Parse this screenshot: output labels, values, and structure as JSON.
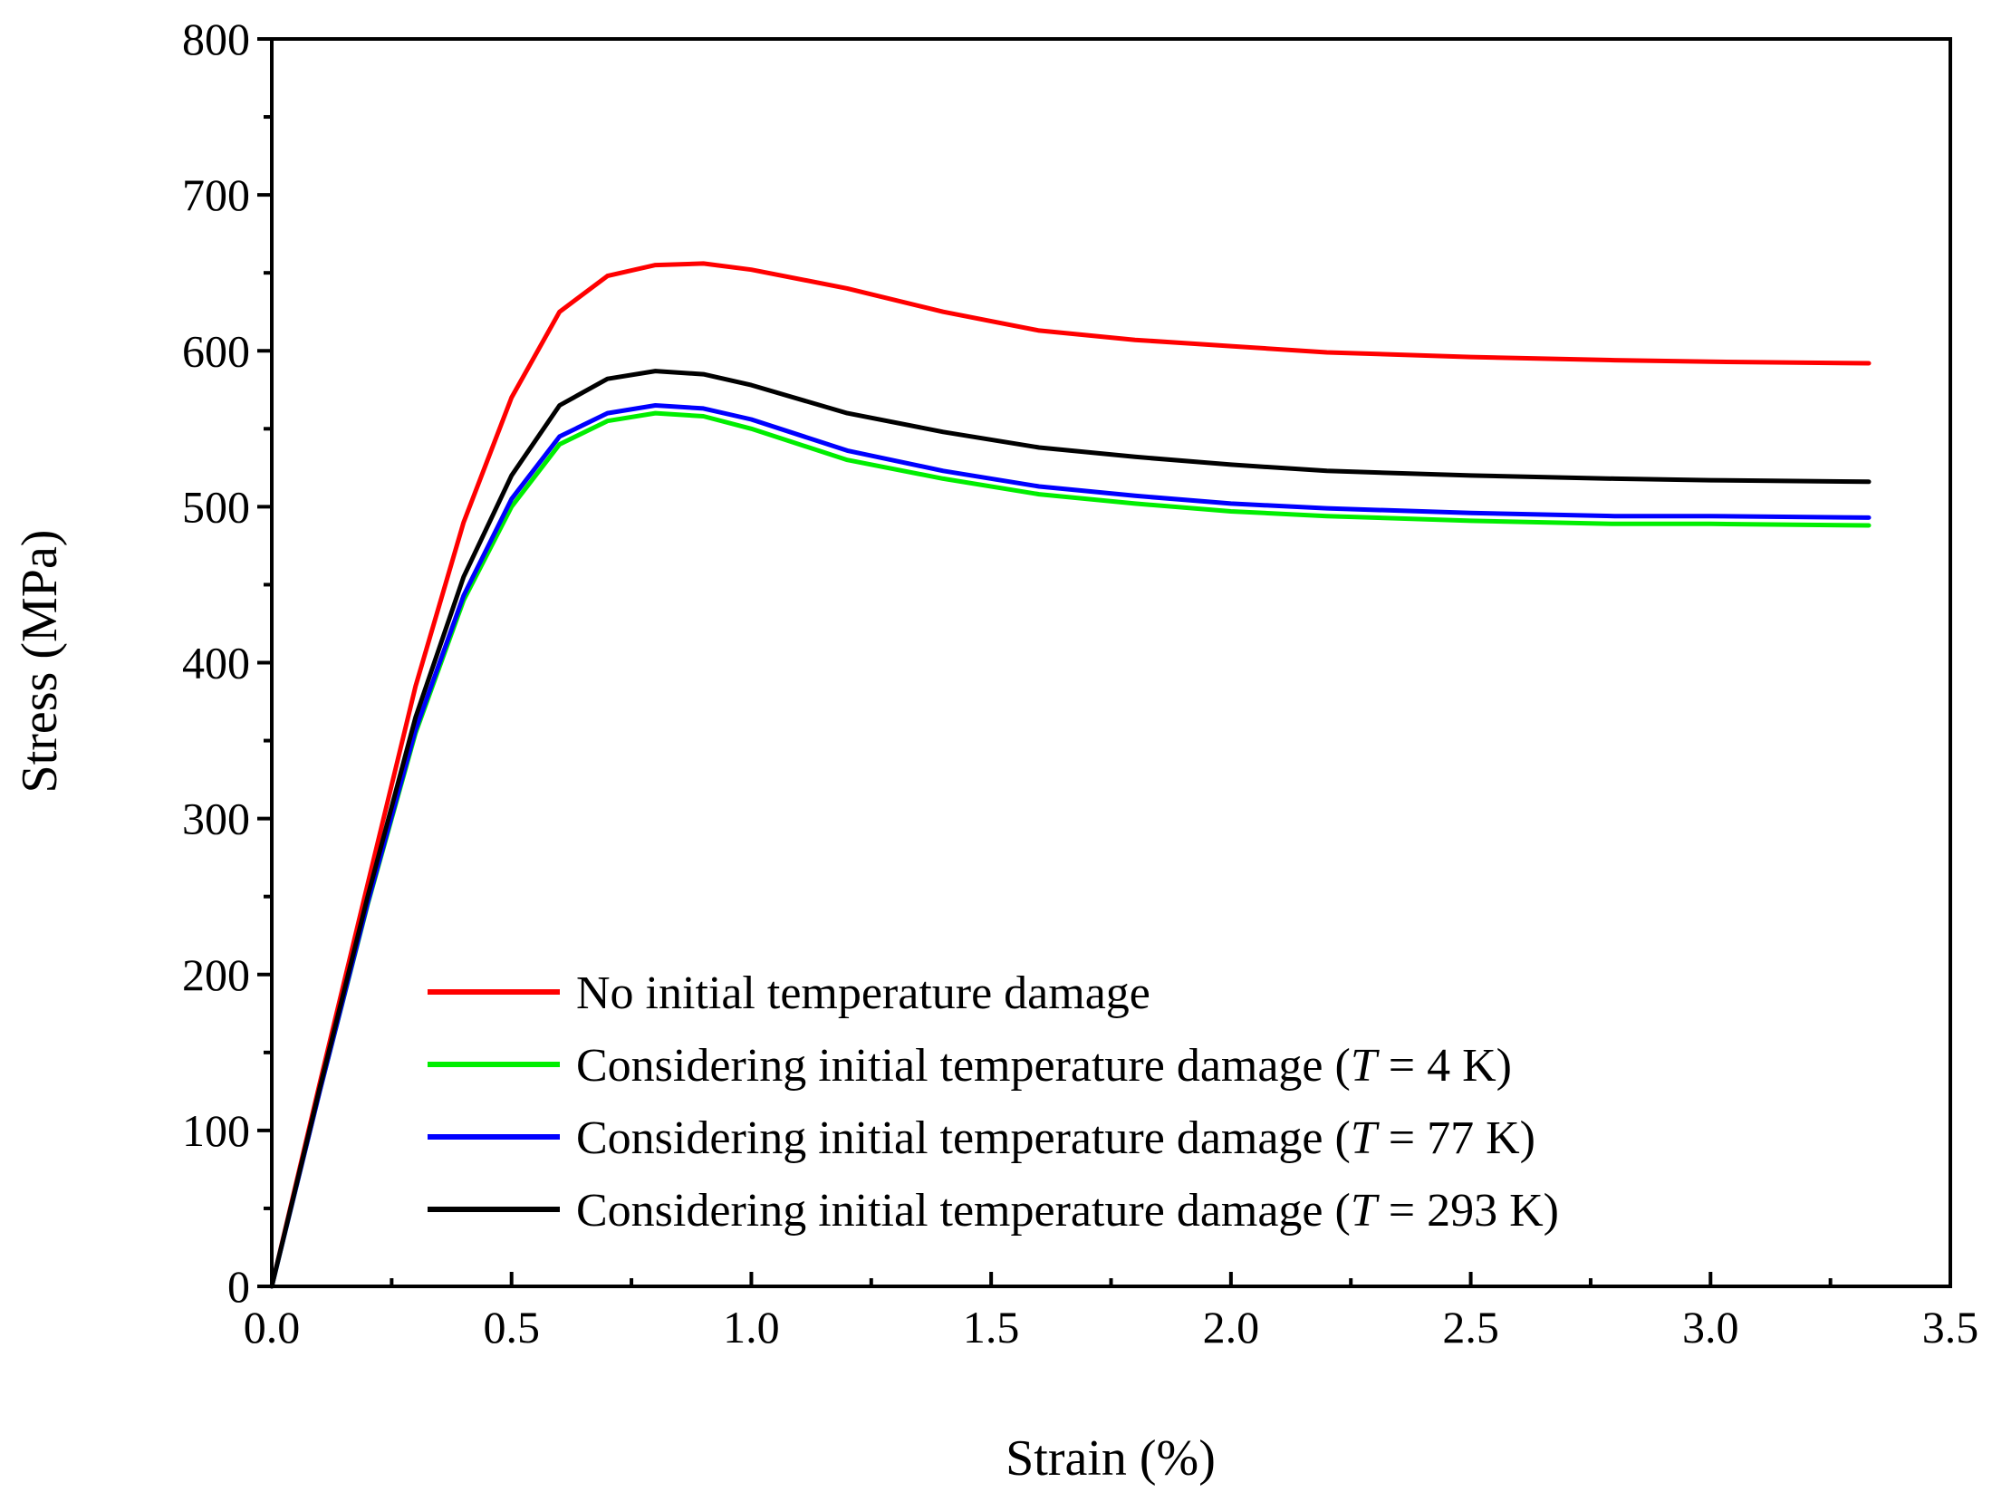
{
  "chart_data": {
    "type": "line",
    "title": "",
    "xlabel": "Strain (%)",
    "ylabel": "Stress (MPa)",
    "xlim": [
      0,
      3.5
    ],
    "ylim": [
      0,
      800
    ],
    "x_ticks": [
      "0.0",
      "0.5",
      "1.0",
      "1.5",
      "2.0",
      "2.5",
      "3.0",
      "3.5"
    ],
    "y_ticks": [
      "0",
      "100",
      "200",
      "300",
      "400",
      "500",
      "600",
      "700",
      "800"
    ],
    "grid": false,
    "legend_position": "lower-center",
    "series": [
      {
        "name": "No initial temperature damage",
        "label_parts": [
          "No initial temperature damage"
        ],
        "color": "#ff0000",
        "x": [
          0,
          0.1,
          0.2,
          0.3,
          0.4,
          0.5,
          0.6,
          0.7,
          0.8,
          0.9,
          1.0,
          1.2,
          1.4,
          1.6,
          1.8,
          2.0,
          2.2,
          2.5,
          2.8,
          3.0,
          3.33
        ],
        "y": [
          0,
          130,
          258,
          385,
          490,
          570,
          625,
          648,
          655,
          656,
          652,
          640,
          625,
          613,
          607,
          603,
          599,
          596,
          594,
          593,
          592
        ]
      },
      {
        "name": "Considering initial temperature damage (T = 4 K)",
        "label_parts": [
          "Considering initial temperature damage (",
          "T",
          " = 4 K)"
        ],
        "color": "#00ee00",
        "x": [
          0,
          0.1,
          0.2,
          0.3,
          0.4,
          0.5,
          0.6,
          0.7,
          0.8,
          0.9,
          1.0,
          1.2,
          1.4,
          1.6,
          1.8,
          2.0,
          2.2,
          2.5,
          2.8,
          3.0,
          3.33
        ],
        "y": [
          0,
          125,
          245,
          355,
          440,
          500,
          540,
          555,
          560,
          558,
          550,
          530,
          518,
          508,
          502,
          497,
          494,
          491,
          489,
          489,
          488
        ]
      },
      {
        "name": "Considering initial temperature damage (T = 77 K)",
        "label_parts": [
          "Considering initial temperature damage (",
          "T",
          " = 77 K)"
        ],
        "color": "#0000ff",
        "x": [
          0,
          0.1,
          0.2,
          0.3,
          0.4,
          0.5,
          0.6,
          0.7,
          0.8,
          0.9,
          1.0,
          1.2,
          1.4,
          1.6,
          1.8,
          2.0,
          2.2,
          2.5,
          2.8,
          3.0,
          3.33
        ],
        "y": [
          0,
          125,
          246,
          357,
          443,
          505,
          545,
          560,
          565,
          563,
          556,
          536,
          523,
          513,
          507,
          502,
          499,
          496,
          494,
          494,
          493
        ]
      },
      {
        "name": "Considering initial temperature damage (T = 293 K)",
        "label_parts": [
          "Considering initial temperature damage (",
          "T",
          " = 293 K)"
        ],
        "color": "#000000",
        "x": [
          0,
          0.1,
          0.2,
          0.3,
          0.4,
          0.5,
          0.6,
          0.7,
          0.8,
          0.9,
          1.0,
          1.2,
          1.4,
          1.6,
          1.8,
          2.0,
          2.2,
          2.5,
          2.8,
          3.0,
          3.33
        ],
        "y": [
          0,
          127,
          250,
          365,
          455,
          520,
          565,
          582,
          587,
          585,
          578,
          560,
          548,
          538,
          532,
          527,
          523,
          520,
          518,
          517,
          516
        ]
      }
    ]
  }
}
